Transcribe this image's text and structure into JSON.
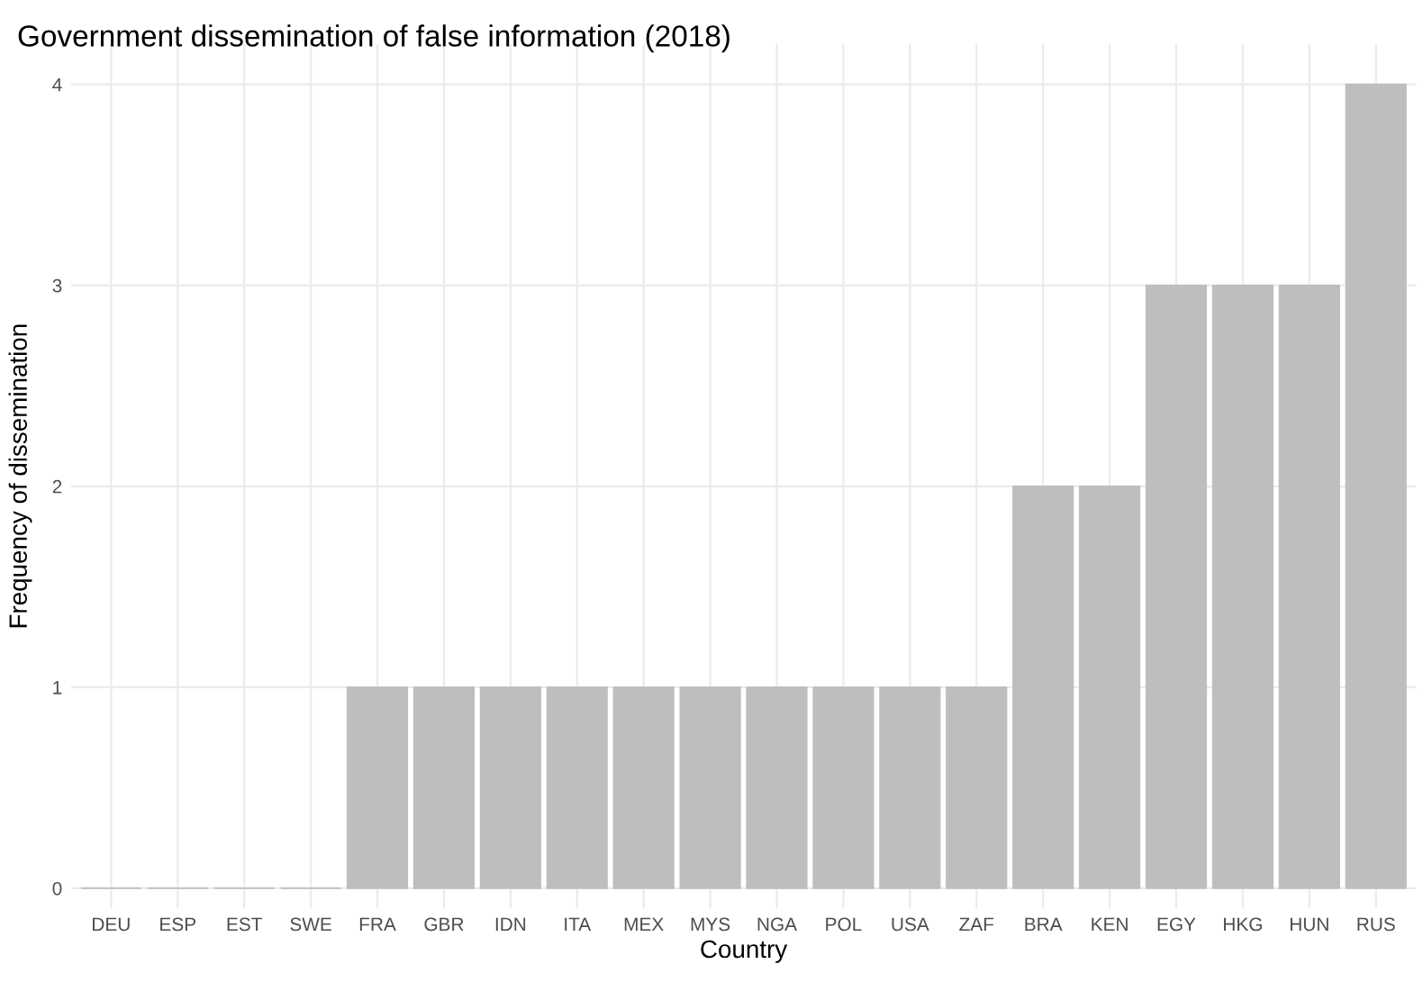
{
  "chart_data": {
    "type": "bar",
    "title": "Government dissemination of false information (2018)",
    "xlabel": "Country",
    "ylabel": "Frequency of dissemination",
    "categories": [
      "DEU",
      "ESP",
      "EST",
      "SWE",
      "FRA",
      "GBR",
      "IDN",
      "ITA",
      "MEX",
      "MYS",
      "NGA",
      "POL",
      "USA",
      "ZAF",
      "BRA",
      "KEN",
      "EGY",
      "HKG",
      "HUN",
      "RUS"
    ],
    "values": [
      0,
      0,
      0,
      0,
      1,
      1,
      1,
      1,
      1,
      1,
      1,
      1,
      1,
      1,
      2,
      2,
      3,
      3,
      3,
      4
    ],
    "color": "#bebebe",
    "ylim": [
      -0.1,
      4.2
    ],
    "yticks": [
      0,
      1,
      2,
      3,
      4
    ],
    "grid": true
  }
}
